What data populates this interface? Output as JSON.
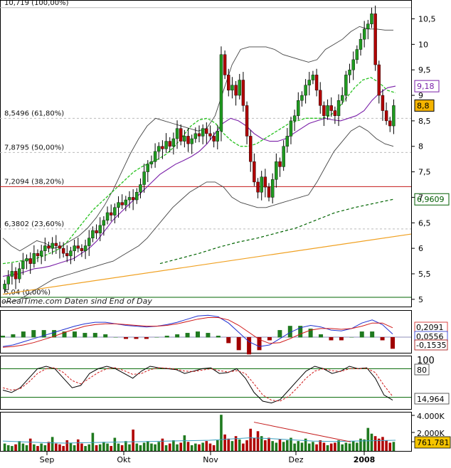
{
  "chart_data": [
    {
      "type": "candlestick",
      "panel": "price",
      "ylim": [
        4.9,
        10.8
      ],
      "y_ticks": [
        "10,5",
        "10",
        "9,5",
        "9",
        "8,5",
        "8",
        "7,5",
        "7",
        "6,5",
        "6",
        "5,5",
        "5"
      ],
      "fib_levels": [
        {
          "label": "10,719 (100,00%)",
          "value": 10.719
        },
        {
          "label": "8,5496 (61,80%)",
          "value": 8.5496
        },
        {
          "label": "7,8795 (50,00%)",
          "value": 7.8795
        },
        {
          "label": "7,2094 (38,20%)",
          "value": 7.2094
        },
        {
          "label": "6,3802 (23,60%)",
          "value": 6.3802
        },
        {
          "label": "5,04 (0,00%)",
          "value": 5.04
        }
      ],
      "value_labels": [
        {
          "text": "9,18",
          "value": 9.18,
          "color": "#7a1fa8",
          "bg": "#ffffff"
        },
        {
          "text": "8,8",
          "value": 8.8,
          "color": "#000000",
          "bg": "#f5b400"
        },
        {
          "text": "6,9609",
          "value": 6.9609,
          "color": "#005c00",
          "bg": "#ffffff"
        }
      ],
      "watermark": "oRealTime.com  Daten sind End of Day",
      "closes": [
        5.3,
        5.45,
        5.55,
        5.4,
        5.6,
        5.75,
        5.8,
        5.7,
        5.9,
        5.85,
        5.95,
        6.05,
        6.0,
        6.1,
        6.05,
        6.0,
        5.9,
        5.85,
        5.95,
        6.05,
        6.0,
        5.95,
        6.05,
        6.2,
        6.35,
        6.3,
        6.45,
        6.55,
        6.7,
        6.65,
        6.8,
        6.9,
        6.85,
        6.95,
        7.0,
        6.95,
        7.1,
        7.25,
        7.5,
        7.65,
        7.7,
        7.9,
        8.0,
        7.95,
        8.1,
        8.0,
        8.15,
        8.35,
        8.1,
        8.2,
        8.05,
        8.15,
        8.25,
        8.2,
        8.35,
        8.25,
        8.2,
        8.1,
        8.3,
        9.8,
        9.4,
        9.1,
        9.2,
        9.0,
        9.3,
        8.8,
        8.2,
        7.7,
        7.3,
        7.1,
        7.4,
        7.2,
        7.0,
        7.35,
        7.7,
        7.6,
        8.0,
        8.2,
        8.5,
        8.6,
        8.9,
        9.0,
        9.2,
        9.3,
        9.4,
        9.1,
        8.8,
        8.6,
        8.8,
        8.7,
        8.6,
        8.9,
        9.0,
        9.4,
        9.5,
        9.7,
        9.9,
        10.1,
        10.3,
        10.4,
        10.6,
        9.6,
        9.0,
        8.7,
        8.5,
        8.4,
        8.8
      ],
      "ma_purple": [
        5.45,
        5.48,
        5.5,
        5.55,
        5.6,
        5.62,
        5.65,
        5.7,
        5.75,
        5.8,
        5.9,
        6.0,
        6.15,
        6.35,
        6.55,
        6.7,
        6.85,
        7.0,
        7.15,
        7.3,
        7.45,
        7.55,
        7.65,
        7.72,
        7.8,
        7.9,
        8.05,
        8.25,
        8.45,
        8.55,
        8.5,
        8.4,
        8.25,
        8.15,
        8.1,
        8.1,
        8.15,
        8.25,
        8.35,
        8.45,
        8.5,
        8.55,
        8.52,
        8.5,
        8.55,
        8.6,
        8.7,
        8.9,
        9.05,
        9.15,
        9.18
      ],
      "ma_green_dash": [
        5.7,
        5.72,
        5.75,
        5.78,
        5.8,
        5.85,
        5.92,
        6.0,
        6.15,
        6.35,
        6.55,
        6.75,
        6.9,
        7.05,
        7.2,
        7.35,
        7.5,
        7.6,
        7.68,
        7.75,
        7.85,
        8.0,
        8.2,
        8.4,
        8.52,
        8.55,
        8.45,
        8.25,
        8.1,
        8.0,
        8.0,
        8.05,
        8.15,
        8.25,
        8.35,
        8.45,
        8.5,
        8.55,
        8.55,
        8.55,
        8.6,
        8.75,
        8.95,
        9.15,
        9.3,
        9.35,
        9.25,
        9.1,
        9.05
      ],
      "bb_upper": [
        6.2,
        6.05,
        5.95,
        6.05,
        6.15,
        6.1,
        6.0,
        6.05,
        6.15,
        6.25,
        6.4,
        6.6,
        6.85,
        7.15,
        7.5,
        7.85,
        8.15,
        8.4,
        8.55,
        8.5,
        8.45,
        8.4,
        8.35,
        8.3,
        8.35,
        8.6,
        9.1,
        9.6,
        9.9,
        9.95,
        9.95,
        9.95,
        9.9,
        9.8,
        9.75,
        9.7,
        9.65,
        9.7,
        9.9,
        10.0,
        10.1,
        10.25,
        10.35,
        10.3,
        10.3,
        10.28,
        10.28
      ],
      "bb_lower": [
        4.95,
        4.95,
        5.0,
        5.1,
        5.2,
        5.3,
        5.4,
        5.45,
        5.5,
        5.55,
        5.6,
        5.65,
        5.7,
        5.75,
        5.85,
        5.95,
        6.05,
        6.2,
        6.4,
        6.6,
        6.8,
        6.95,
        7.1,
        7.2,
        7.3,
        7.3,
        7.2,
        7.0,
        6.9,
        6.85,
        6.8,
        6.8,
        6.85,
        6.9,
        6.95,
        7.0,
        7.05,
        7.3,
        7.6,
        7.9,
        8.1,
        8.3,
        8.4,
        8.3,
        8.15,
        8.05,
        8.0
      ],
      "ma200": [
        5.7,
        5.8,
        5.9,
        6.02,
        6.12,
        6.2,
        6.3,
        6.4,
        6.55,
        6.7,
        6.8,
        6.88,
        6.9609
      ],
      "trend_line": [
        5.1,
        6.28
      ]
    },
    {
      "type": "line+bar",
      "panel": "macd",
      "labels": [
        "0,2091",
        "0,0556",
        "-0,1535"
      ],
      "macd": [
        -0.12,
        -0.1,
        -0.06,
        -0.02,
        0.02,
        0.06,
        0.1,
        0.14,
        0.17,
        0.19,
        0.19,
        0.17,
        0.15,
        0.14,
        0.13,
        0.14,
        0.16,
        0.19,
        0.23,
        0.27,
        0.28,
        0.26,
        0.18,
        0.06,
        -0.06,
        -0.12,
        -0.1,
        -0.02,
        0.06,
        0.12,
        0.15,
        0.13,
        0.09,
        0.08,
        0.11,
        0.18,
        0.22,
        0.16,
        0.04
      ],
      "signal": [
        -0.13,
        -0.12,
        -0.1,
        -0.07,
        -0.03,
        0.01,
        0.06,
        0.1,
        0.14,
        0.16,
        0.17,
        0.17,
        0.16,
        0.15,
        0.14,
        0.14,
        0.15,
        0.17,
        0.2,
        0.23,
        0.25,
        0.25,
        0.22,
        0.15,
        0.06,
        -0.03,
        -0.08,
        -0.07,
        -0.02,
        0.04,
        0.09,
        0.11,
        0.11,
        0.1,
        0.11,
        0.14,
        0.18,
        0.18,
        0.12
      ]
    },
    {
      "type": "line",
      "panel": "stochastic",
      "labels": [
        "100",
        "80",
        "14,964"
      ],
      "k": [
        35,
        30,
        40,
        60,
        80,
        85,
        80,
        60,
        40,
        45,
        70,
        80,
        85,
        80,
        70,
        60,
        75,
        85,
        82,
        80,
        78,
        70,
        75,
        80,
        82,
        70,
        72,
        80,
        60,
        30,
        12,
        8,
        15,
        35,
        55,
        75,
        85,
        80,
        70,
        75,
        85,
        80,
        82,
        60,
        25,
        14
      ],
      "d": [
        40,
        35,
        38,
        52,
        70,
        80,
        82,
        72,
        55,
        48,
        60,
        72,
        80,
        82,
        76,
        68,
        70,
        78,
        82,
        81,
        79,
        75,
        74,
        77,
        80,
        76,
        73,
        76,
        70,
        48,
        25,
        14,
        12,
        22,
        40,
        60,
        75,
        80,
        76,
        74,
        80,
        80,
        81,
        72,
        45,
        22
      ]
    },
    {
      "type": "bar",
      "panel": "volume",
      "labels": [
        "4.000K",
        "2.000K",
        "761.781"
      ],
      "ylim": [
        0,
        4500
      ]
    }
  ],
  "x_axis": [
    "Sep",
    "Okt",
    "Nov",
    "Dez",
    "2008"
  ]
}
